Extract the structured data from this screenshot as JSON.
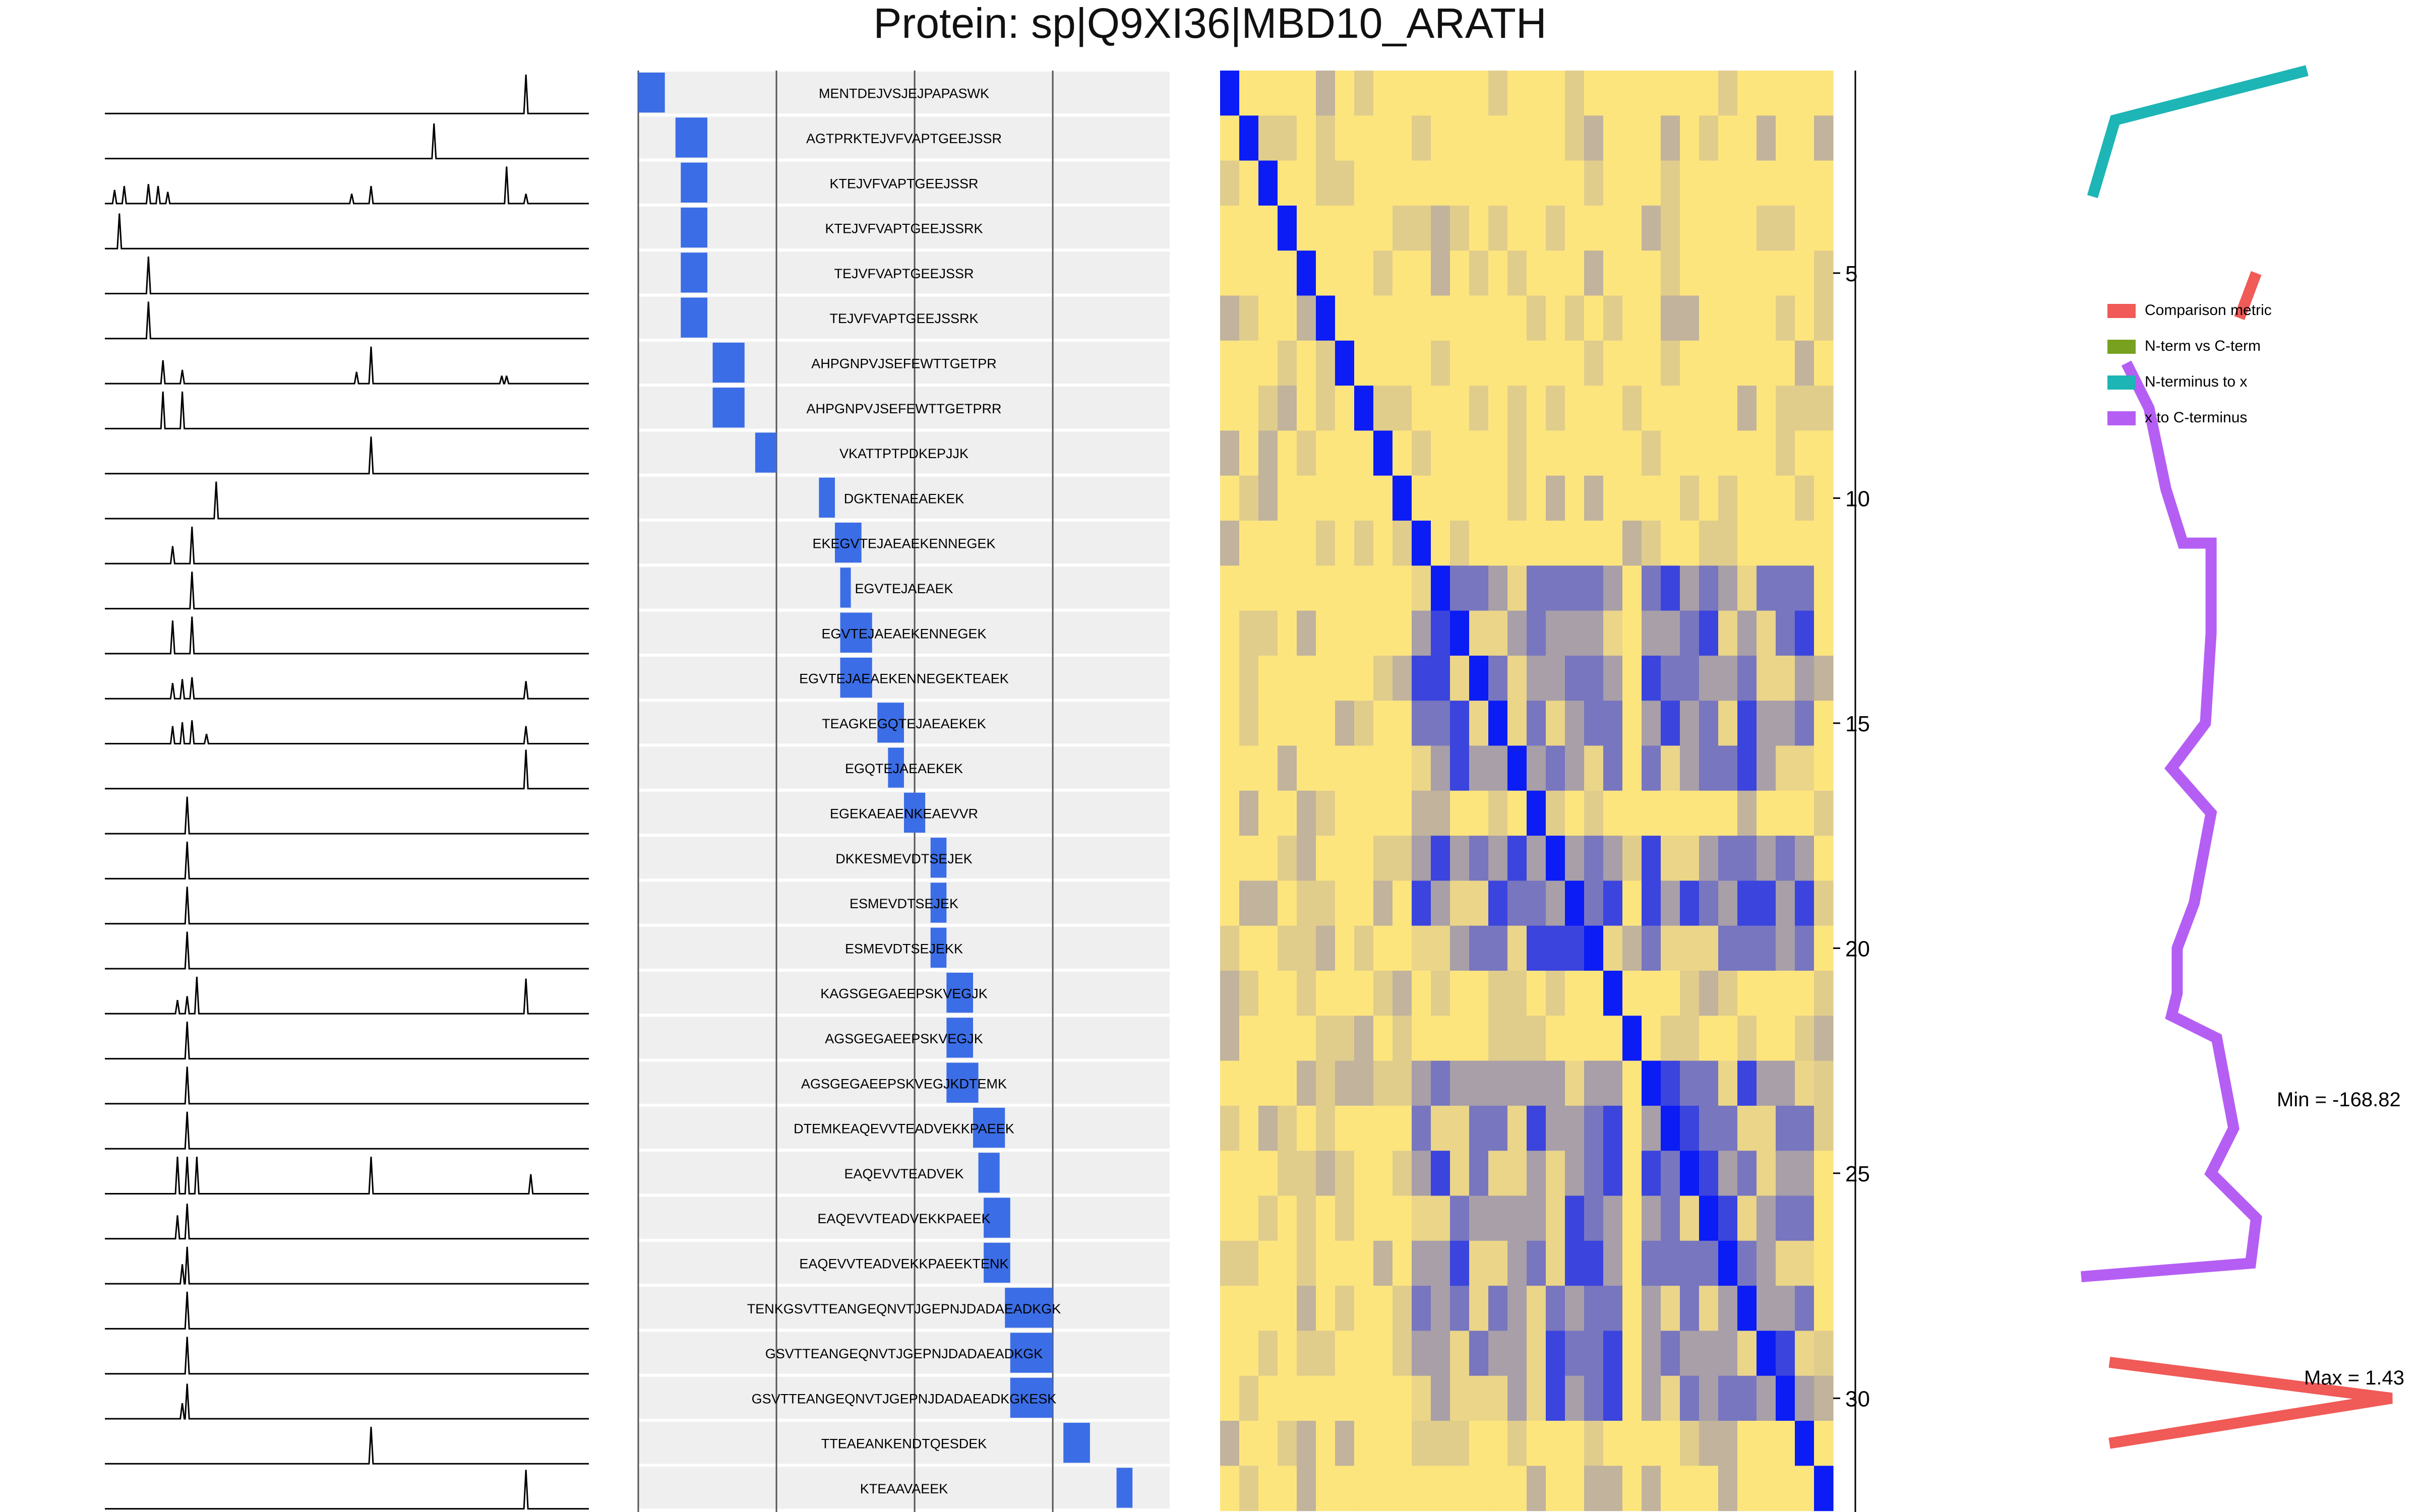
{
  "title": "Protein: sp|Q9XI36|MBD10_ARATH",
  "min_label": "Min = -168.82",
  "max_label": "Max = 1.43",
  "colors": {
    "bar": "#3b6de6",
    "heat_low": "#fde57e",
    "heat_high": "#0b1cf5",
    "panel_bg": "#efefef",
    "comparison": "#f05a57",
    "nterm_cterm": "#77a11e",
    "nterm_x": "#1db5b5",
    "x_cterm": "#b55ef4"
  },
  "legend": [
    {
      "label": "Comparison metric",
      "color": "#f05a57"
    },
    {
      "label": "N-term vs C-term",
      "color": "#77a11e"
    },
    {
      "label": "N-terminus to x",
      "color": "#1db5b5"
    },
    {
      "label": "x to C-terminus",
      "color": "#b55ef4"
    }
  ],
  "chart_data": [
    {
      "type": "line",
      "name": "elution-profiles",
      "rows": 32,
      "x_range": [
        0,
        100
      ],
      "profiles": [
        [
          [
            87,
            1.0
          ]
        ],
        [
          [
            68,
            0.9
          ]
        ],
        [
          [
            2,
            0.35
          ],
          [
            4,
            0.45
          ],
          [
            9,
            0.5
          ],
          [
            11,
            0.45
          ],
          [
            13,
            0.3
          ],
          [
            51,
            0.25
          ],
          [
            55,
            0.45
          ],
          [
            83,
            0.95
          ],
          [
            87,
            0.25
          ]
        ],
        [
          [
            3,
            0.9
          ]
        ],
        [
          [
            9,
            0.95
          ]
        ],
        [
          [
            9,
            0.95
          ]
        ],
        [
          [
            12,
            0.6
          ],
          [
            16,
            0.35
          ],
          [
            52,
            0.3
          ],
          [
            55,
            0.95
          ],
          [
            82,
            0.2
          ],
          [
            83,
            0.2
          ]
        ],
        [
          [
            12,
            0.95
          ],
          [
            16,
            0.95
          ]
        ],
        [
          [
            55,
            0.95
          ]
        ],
        [
          [
            23,
            0.95
          ]
        ],
        [
          [
            14,
            0.45
          ],
          [
            18,
            0.95
          ]
        ],
        [
          [
            18,
            0.95
          ]
        ],
        [
          [
            14,
            0.85
          ],
          [
            18,
            0.95
          ]
        ],
        [
          [
            14,
            0.4
          ],
          [
            16,
            0.5
          ],
          [
            18,
            0.55
          ],
          [
            87,
            0.45
          ]
        ],
        [
          [
            14,
            0.45
          ],
          [
            16,
            0.55
          ],
          [
            18,
            0.6
          ],
          [
            21,
            0.25
          ],
          [
            87,
            0.45
          ]
        ],
        [
          [
            87,
            1.0
          ]
        ],
        [
          [
            17,
            0.95
          ]
        ],
        [
          [
            17,
            0.95
          ]
        ],
        [
          [
            17,
            0.95
          ]
        ],
        [
          [
            17,
            0.95
          ]
        ],
        [
          [
            15,
            0.35
          ],
          [
            17,
            0.45
          ],
          [
            19,
            0.95
          ],
          [
            87,
            0.9
          ]
        ],
        [
          [
            17,
            0.95
          ]
        ],
        [
          [
            17,
            0.95
          ]
        ],
        [
          [
            17,
            0.95
          ]
        ],
        [
          [
            15,
            0.95
          ],
          [
            17,
            0.95
          ],
          [
            19,
            0.95
          ],
          [
            55,
            0.95
          ],
          [
            88,
            0.5
          ]
        ],
        [
          [
            15,
            0.6
          ],
          [
            17,
            0.9
          ]
        ],
        [
          [
            16,
            0.5
          ],
          [
            17,
            0.95
          ]
        ],
        [
          [
            17,
            0.95
          ]
        ],
        [
          [
            17,
            0.95
          ]
        ],
        [
          [
            16,
            0.4
          ],
          [
            17,
            0.9
          ]
        ],
        [
          [
            55,
            0.95
          ]
        ],
        [
          [
            87,
            1.0
          ]
        ]
      ]
    },
    {
      "type": "bar",
      "name": "peptide-coverage",
      "x_range": [
        0,
        100
      ],
      "vertical_lines": [
        26,
        52,
        78
      ],
      "categories": [
        "MENTDEJVSJEJPAPASWK",
        "AGTPRKTEJVFVAPTGEEJSSR",
        "KTEJVFVAPTGEEJSSR",
        "KTEJVFVAPTGEEJSSRK",
        "TEJVFVAPTGEEJSSR",
        "TEJVFVAPTGEEJSSRK",
        "AHPGNPVJSEFEWTTGETPR",
        "AHPGNPVJSEFEWTTGETPRR",
        "VKATTPTPDKEPJJK",
        "DGKTENAEAEKEK",
        "EKEGVTEJAEAEKENNEGEK",
        "EGVTEJAEAEK",
        "EGVTEJAEAEKENNEGEK",
        "EGVTEJAEAEKENNEGEKTEAEK",
        "TEAGKEGQTEJAEAEKEK",
        "EGQTEJAEAEKEK",
        "EGEKAEAENKEAEVVR",
        "DKKESMEVDTSEJEK",
        "ESMEVDTSEJEK",
        "ESMEVDTSEJEKK",
        "KAGSGEGAEEPSKVEGJK",
        "AGSGEGAEEPSKVEGJK",
        "AGSGEGAEEPSKVEGJKDTEMK",
        "DTEMKEAQEVVTEADVEKKPAEEK",
        "EAQEVVTEADVEK",
        "EAQEVVTEADVEKKPAEEK",
        "EAQEVVTEADVEKKPAEEKTENK",
        "TENKGSVTTEANGEQNVTJGEPNJDADAEADKGK",
        "GSVTTEANGEQNVTJGEPNJDADAEADKGK",
        "GSVTTEANGEQNVTJGEPNJDADAEADKGKESK",
        "TTEAEANKENDTQESDEK",
        "KTEAAVAEEK"
      ],
      "bars": [
        [
          0,
          5
        ],
        [
          7,
          13
        ],
        [
          8,
          13
        ],
        [
          8,
          13
        ],
        [
          8,
          13
        ],
        [
          8,
          13
        ],
        [
          14,
          20
        ],
        [
          14,
          20
        ],
        [
          22,
          26
        ],
        [
          34,
          37
        ],
        [
          37,
          42
        ],
        [
          38,
          40
        ],
        [
          38,
          44
        ],
        [
          38,
          44
        ],
        [
          45,
          50
        ],
        [
          47,
          50
        ],
        [
          50,
          54
        ],
        [
          55,
          58
        ],
        [
          55,
          58
        ],
        [
          55,
          58
        ],
        [
          58,
          63
        ],
        [
          58,
          63
        ],
        [
          58,
          64
        ],
        [
          63,
          69
        ],
        [
          64,
          68
        ],
        [
          65,
          70
        ],
        [
          65,
          70
        ],
        [
          69,
          78
        ],
        [
          70,
          78
        ],
        [
          70,
          78
        ],
        [
          80,
          85
        ],
        [
          90,
          93
        ]
      ]
    },
    {
      "type": "heatmap",
      "name": "correlation-heatmap",
      "size": 32,
      "y_ticks": [
        5,
        10,
        15,
        20,
        25,
        30
      ],
      "blue_cluster_rows": [
        11,
        12,
        13,
        14,
        15,
        17,
        18,
        19,
        22,
        23,
        24,
        25,
        26,
        27,
        28,
        29
      ],
      "blue_cluster_cols": [
        10,
        11,
        12,
        13,
        14,
        15,
        16,
        17,
        18,
        19,
        20,
        22,
        23,
        24,
        25,
        26,
        27,
        28,
        29,
        30
      ]
    },
    {
      "type": "line",
      "name": "comparison-metrics",
      "y_range": [
        1,
        32
      ],
      "series": [
        {
          "name": "N-terminus to x",
          "color": "#1db5b5",
          "points": [
            [
              42,
              3.3
            ],
            [
              46,
              1.6
            ],
            [
              80,
              0.5
            ]
          ]
        },
        {
          "name": "Comparison metric",
          "color": "#f05a57",
          "points": [
            [
              68,
              6.0
            ],
            [
              71,
              5.0
            ]
          ]
        },
        {
          "name": "x to C-terminus",
          "color": "#b55ef4",
          "points": [
            [
              48,
              7.0
            ],
            [
              52,
              8.0
            ],
            [
              55,
              9.8
            ],
            [
              58,
              11.0
            ],
            [
              63,
              11.0
            ],
            [
              63,
              13.0
            ],
            [
              62,
              15.0
            ],
            [
              56,
              16.0
            ],
            [
              63,
              17.0
            ],
            [
              60,
              19.0
            ],
            [
              57,
              20.0
            ],
            [
              57,
              21.0
            ],
            [
              56,
              21.5
            ],
            [
              64,
              22.0
            ],
            [
              67,
              24.0
            ],
            [
              63,
              25.0
            ],
            [
              71,
              26.0
            ],
            [
              70,
              27.0
            ],
            [
              40,
              27.3
            ]
          ]
        },
        {
          "name": "Comparison metric",
          "color": "#f05a57",
          "points": [
            [
              45,
              29.2
            ],
            [
              95,
              30.0
            ],
            [
              45,
              31.0
            ]
          ]
        }
      ]
    }
  ]
}
